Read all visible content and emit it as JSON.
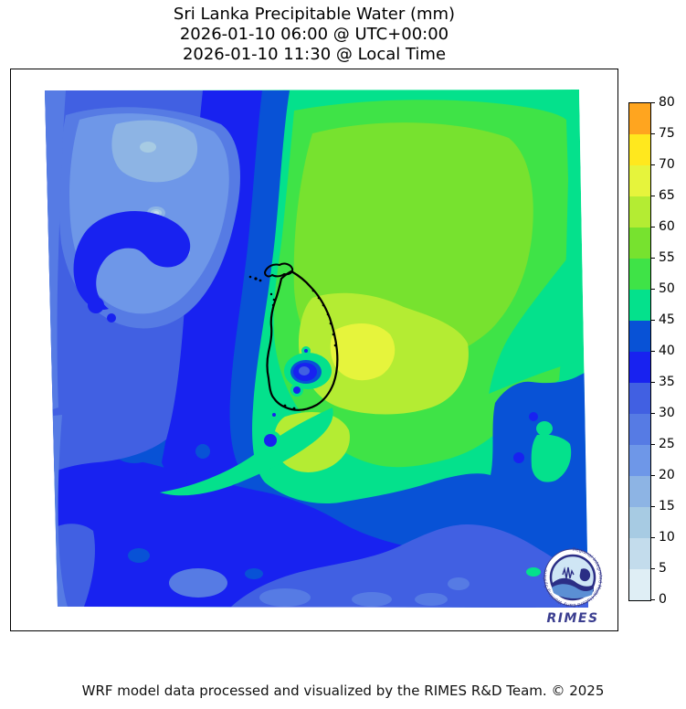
{
  "title": {
    "line1": "Sri Lanka Precipitable Water (mm)",
    "line2": "2026-01-10 06:00 @ UTC+00:00",
    "line3": "2026-01-10 11:30 @ Local Time"
  },
  "footer": {
    "credit": "WRF model data processed and visualized by the RIMES R&D Team. © 2025"
  },
  "logo": {
    "text": "RIMES",
    "ring_text": "Regional Integrated Multi-Hazard Early Warning System",
    "color": "#3A3D8F"
  },
  "map": {
    "coastline_color": "#000000",
    "island": "Sri Lanka",
    "palette": {
      "c0": "#DFEEF5",
      "c1": "#C3DCEC",
      "c2": "#A7CBE3",
      "c3": "#8DB4E4",
      "c4": "#6E97E8",
      "c5": "#567BE4",
      "c6": "#4160E2",
      "c7": "#1822F0",
      "c8": "#0852D6",
      "c9": "#04E18C",
      "c10": "#3FE347",
      "c11": "#77E22F",
      "c12": "#B4EC33",
      "c13": "#E6F43C",
      "c14": "#FFE81E",
      "c15": "#FFA51F"
    }
  },
  "colorbar": {
    "units": "mm",
    "min": 0,
    "max": 80,
    "step": 5,
    "tick_labels": [
      "80",
      "75",
      "70",
      "65",
      "60",
      "55",
      "50",
      "45",
      "40",
      "35",
      "30",
      "25",
      "20",
      "15",
      "10",
      "5",
      "0"
    ],
    "levels": [
      {
        "range": "75-80",
        "level": "c15"
      },
      {
        "range": "70-75",
        "level": "c14"
      },
      {
        "range": "65-70",
        "level": "c13"
      },
      {
        "range": "60-65",
        "level": "c12"
      },
      {
        "range": "55-60",
        "level": "c11"
      },
      {
        "range": "50-55",
        "level": "c10"
      },
      {
        "range": "45-50",
        "level": "c9"
      },
      {
        "range": "40-45",
        "level": "c8"
      },
      {
        "range": "35-40",
        "level": "c7"
      },
      {
        "range": "30-35",
        "level": "c6"
      },
      {
        "range": "25-30",
        "level": "c5"
      },
      {
        "range": "20-25",
        "level": "c4"
      },
      {
        "range": "15-20",
        "level": "c3"
      },
      {
        "range": "10-15",
        "level": "c2"
      },
      {
        "range": "5-10",
        "level": "c1"
      },
      {
        "range": "0-5",
        "level": "c0"
      }
    ]
  },
  "chart_data": {
    "type": "heatmap",
    "title": "Sri Lanka Precipitable Water (mm)",
    "subtitle_utc": "2026-01-10 06:00 @ UTC+00:00",
    "subtitle_local": "2026-01-10 11:30 @ Local Time",
    "variable": "Precipitable Water",
    "units": "mm",
    "legend_position": "right",
    "colorbar_ticks": [
      0,
      5,
      10,
      15,
      20,
      25,
      30,
      35,
      40,
      45,
      50,
      55,
      60,
      65,
      70,
      75,
      80
    ],
    "value_range_shown_mm": [
      5,
      70
    ],
    "regions": [
      {
        "area": "west/northwest ocean (left of map)",
        "pw_mm": "25-35"
      },
      {
        "area": "dry pocket upper-left",
        "pw_mm": "10-25"
      },
      {
        "area": "meridional dry band west of Sri Lanka",
        "pw_mm": "35-45"
      },
      {
        "area": "narrow transition band flanking dry band",
        "pw_mm": "45-50"
      },
      {
        "area": "Bay of Bengal northeast of Sri Lanka",
        "pw_mm": "50-65"
      },
      {
        "area": "moist patch just east of Sri Lanka",
        "pw_mm": "65-70"
      },
      {
        "area": "Sri Lanka central-highlands dry pocket",
        "pw_mm": "30-45"
      },
      {
        "area": "southern ocean band (bottom of map)",
        "pw_mm": "25-45"
      },
      {
        "area": "bottom-right swath",
        "pw_mm": "30-35"
      }
    ]
  }
}
